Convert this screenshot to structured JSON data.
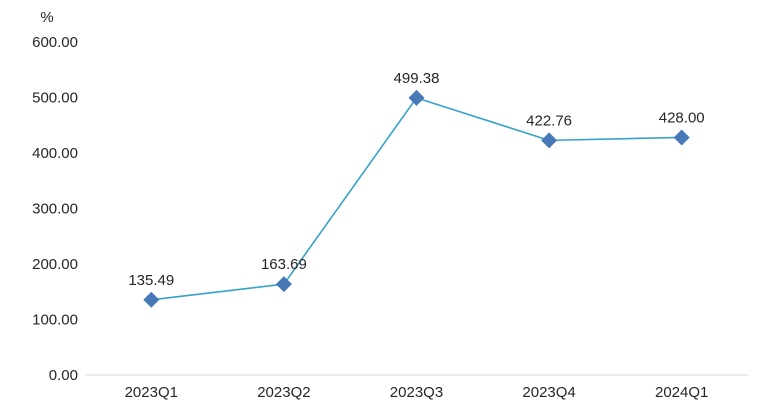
{
  "chart_data": {
    "type": "line",
    "unit_label": "%",
    "categories": [
      "2023Q1",
      "2023Q2",
      "2023Q3",
      "2023Q4",
      "2024Q1"
    ],
    "values": [
      135.49,
      163.69,
      499.38,
      422.76,
      428.0
    ],
    "data_labels": [
      "135.49",
      "163.69",
      "499.38",
      "422.76",
      "428.00"
    ],
    "y_ticks": [
      0,
      100,
      200,
      300,
      400,
      500,
      600
    ],
    "y_tick_labels": [
      "0.00",
      "100.00",
      "200.00",
      "300.00",
      "400.00",
      "500.00",
      "600.00"
    ],
    "ylim": [
      0,
      600
    ],
    "xlabel": "",
    "ylabel": "%",
    "title": "",
    "grid": false,
    "legend_position": "none",
    "marker_shape": "diamond",
    "colors": {
      "line": "#35A2C8",
      "marker": "#4878B8",
      "axis_line": "#D9D9D9",
      "text": "#262626",
      "background": "#FFFFFF"
    }
  }
}
